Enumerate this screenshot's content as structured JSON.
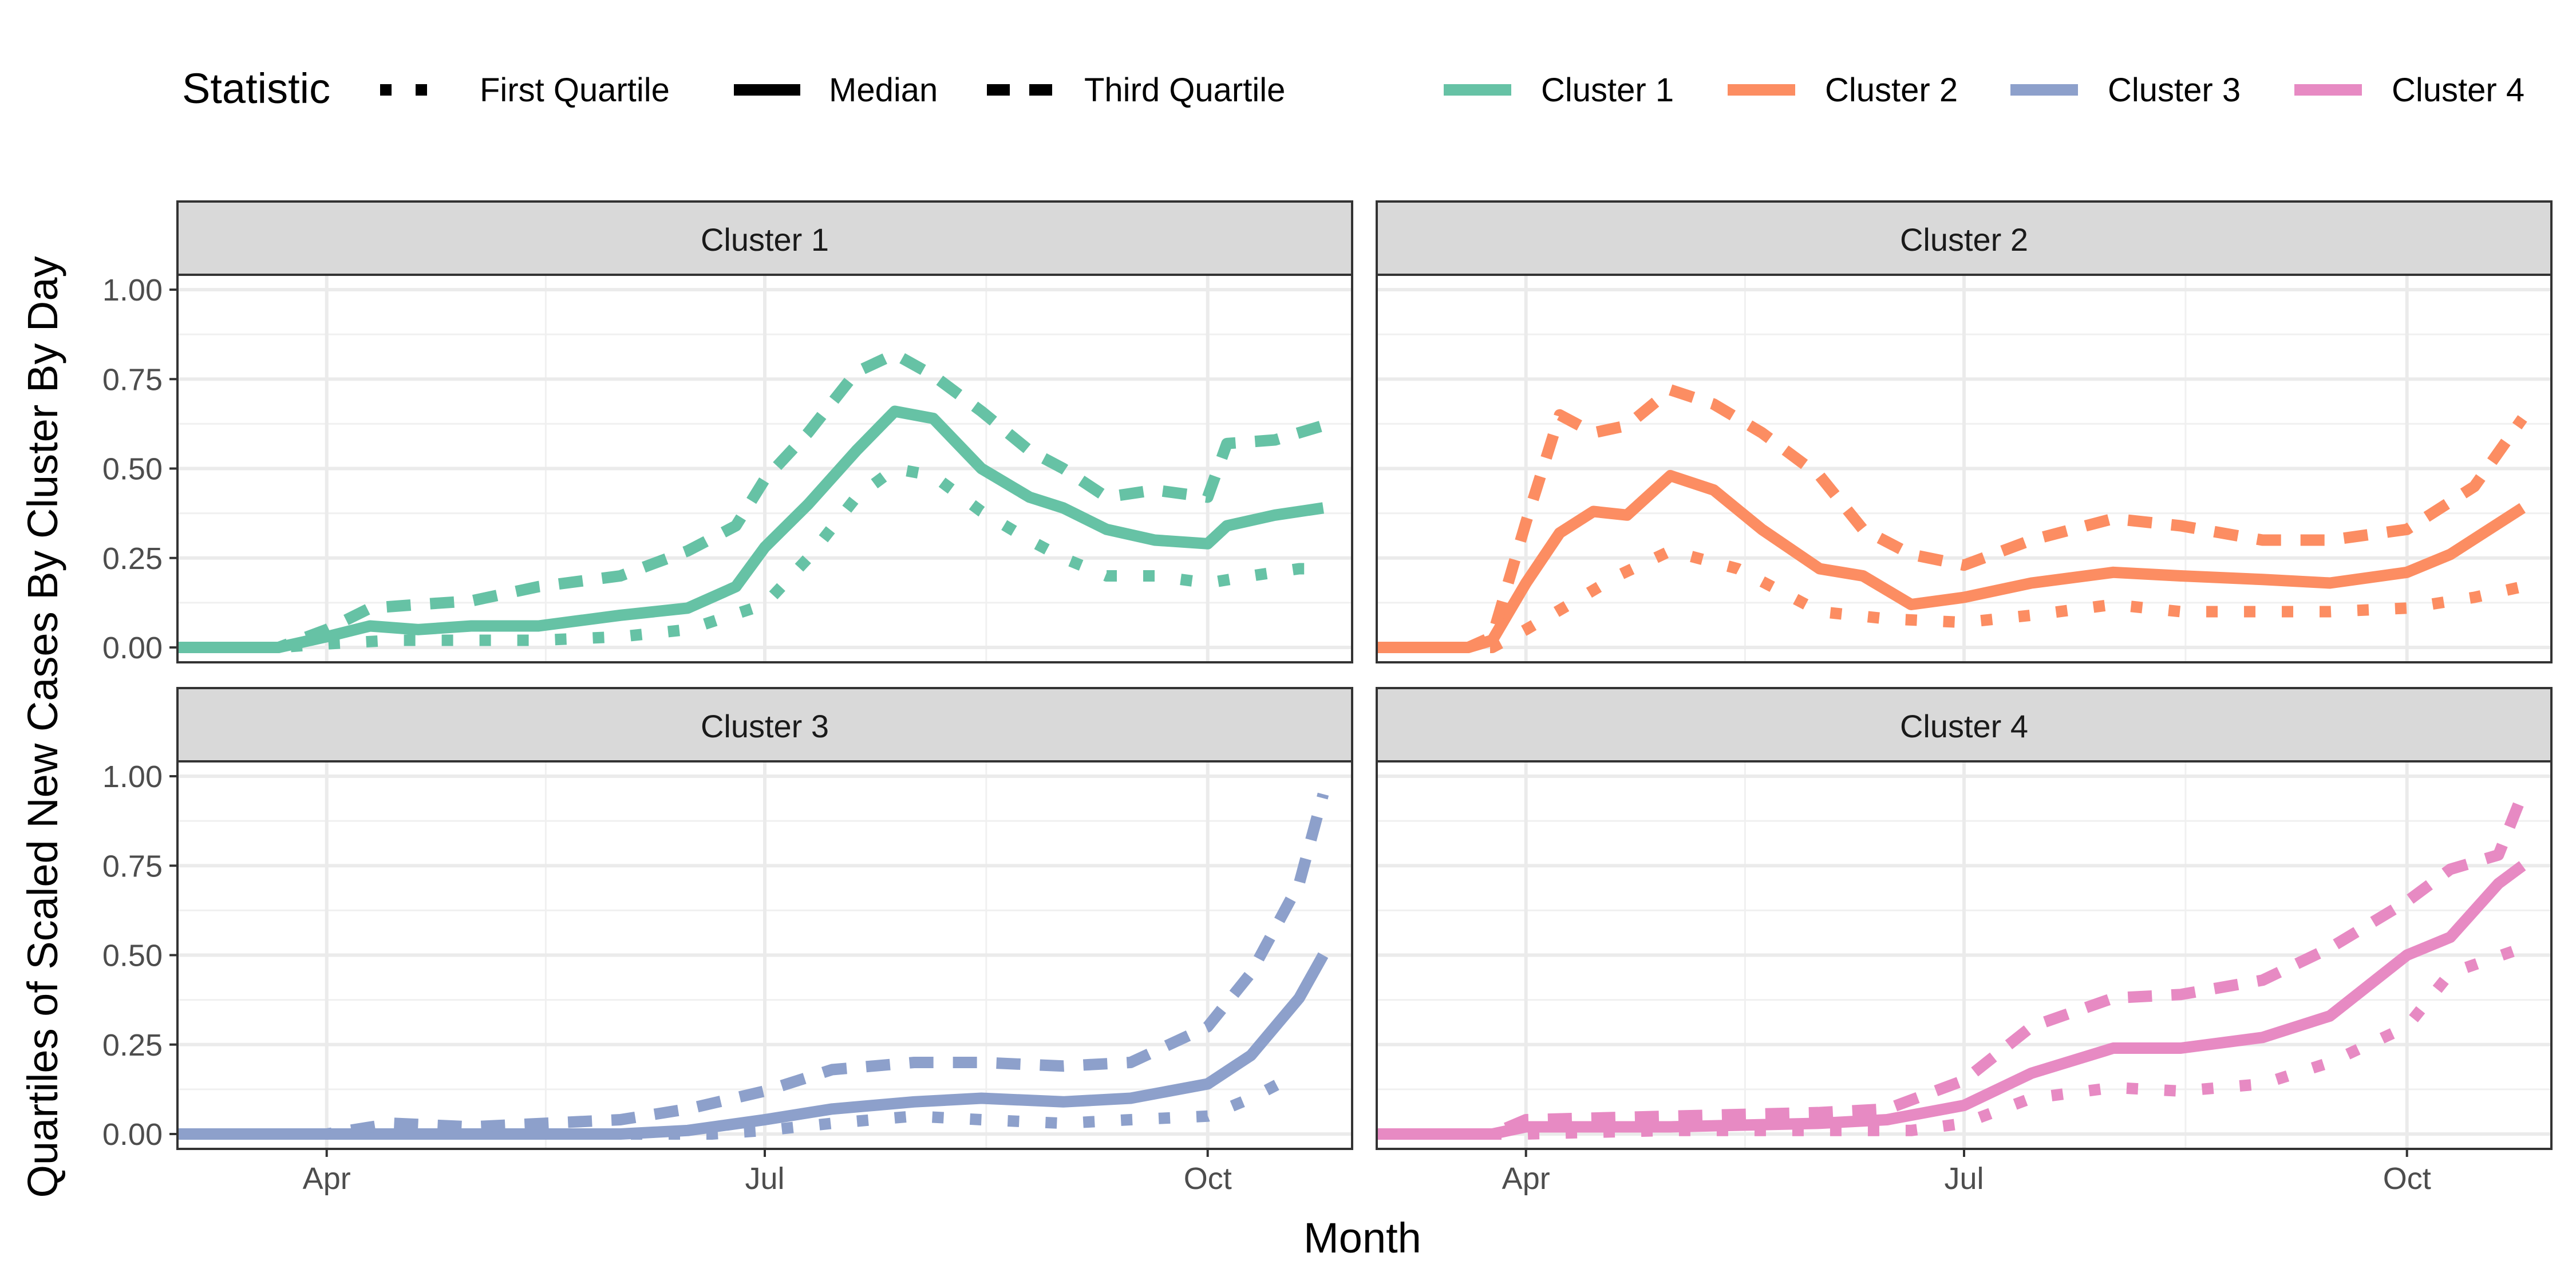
{
  "chart_data": {
    "type": "line",
    "xlabel": "Month",
    "ylabel": "Quartiles of Scaled New Cases By Cluster By Day",
    "x_range": [
      "2020-03-01",
      "2020-10-31"
    ],
    "x_ticks": [
      {
        "label": "Apr",
        "date": "2020-04-01"
      },
      {
        "label": "Jul",
        "date": "2020-07-01"
      },
      {
        "label": "Oct",
        "date": "2020-10-01"
      }
    ],
    "ylim": [
      0,
      1
    ],
    "y_ticks": [
      "0.00",
      "0.25",
      "0.50",
      "0.75",
      "1.00"
    ],
    "grid": true,
    "legend": {
      "position": "top",
      "statistic_title": "Statistic",
      "statistics": [
        "First Quartile",
        "Median",
        "Third Quartile"
      ],
      "clusters": [
        "Cluster 1",
        "Cluster 2",
        "Cluster 3",
        "Cluster 4"
      ]
    },
    "colors": {
      "Cluster 1": "#66c2a5",
      "Cluster 2": "#fc8d62",
      "Cluster 3": "#8da0cb",
      "Cluster 4": "#e78ac3"
    },
    "facets": [
      {
        "name": "Cluster 1",
        "series": [
          {
            "name": "First Quartile",
            "x": [
              "2020-03-01",
              "2020-03-15",
              "2020-03-22",
              "2020-04-01",
              "2020-04-15",
              "2020-05-01",
              "2020-05-15",
              "2020-06-01",
              "2020-06-15",
              "2020-07-01",
              "2020-07-10",
              "2020-07-20",
              "2020-07-28",
              "2020-08-05",
              "2020-08-15",
              "2020-08-25",
              "2020-09-01",
              "2020-09-10",
              "2020-09-20",
              "2020-10-01",
              "2020-10-10",
              "2020-10-20",
              "2020-10-25"
            ],
            "y": [
              0,
              0,
              0,
              0.01,
              0.02,
              0.02,
              0.02,
              0.03,
              0.05,
              0.12,
              0.25,
              0.42,
              0.5,
              0.48,
              0.38,
              0.3,
              0.25,
              0.2,
              0.2,
              0.18,
              0.2,
              0.22,
              0.22
            ]
          },
          {
            "name": "Median",
            "x": [
              "2020-03-01",
              "2020-03-15",
              "2020-03-22",
              "2020-04-01",
              "2020-04-10",
              "2020-04-20",
              "2020-05-01",
              "2020-05-15",
              "2020-06-01",
              "2020-06-15",
              "2020-06-25",
              "2020-07-01",
              "2020-07-10",
              "2020-07-20",
              "2020-07-28",
              "2020-08-05",
              "2020-08-15",
              "2020-08-25",
              "2020-09-01",
              "2020-09-10",
              "2020-09-20",
              "2020-10-01",
              "2020-10-05",
              "2020-10-15",
              "2020-10-25"
            ],
            "y": [
              0,
              0,
              0,
              0.03,
              0.06,
              0.05,
              0.06,
              0.06,
              0.09,
              0.11,
              0.17,
              0.28,
              0.4,
              0.55,
              0.66,
              0.64,
              0.5,
              0.42,
              0.39,
              0.33,
              0.3,
              0.29,
              0.34,
              0.37,
              0.39
            ]
          },
          {
            "name": "Third Quartile",
            "x": [
              "2020-03-01",
              "2020-03-15",
              "2020-03-22",
              "2020-04-01",
              "2020-04-10",
              "2020-04-20",
              "2020-05-01",
              "2020-05-15",
              "2020-06-01",
              "2020-06-15",
              "2020-06-25",
              "2020-07-01",
              "2020-07-10",
              "2020-07-20",
              "2020-07-28",
              "2020-08-05",
              "2020-08-15",
              "2020-08-25",
              "2020-09-01",
              "2020-09-10",
              "2020-09-20",
              "2020-10-01",
              "2020-10-05",
              "2020-10-15",
              "2020-10-25"
            ],
            "y": [
              0,
              0,
              0,
              0.05,
              0.11,
              0.12,
              0.13,
              0.17,
              0.2,
              0.27,
              0.34,
              0.47,
              0.6,
              0.77,
              0.82,
              0.76,
              0.66,
              0.55,
              0.5,
              0.42,
              0.44,
              0.42,
              0.57,
              0.58,
              0.62
            ]
          }
        ]
      },
      {
        "name": "Cluster 2",
        "series": [
          {
            "name": "First Quartile",
            "x": [
              "2020-03-01",
              "2020-03-20",
              "2020-03-25",
              "2020-04-01",
              "2020-04-10",
              "2020-04-20",
              "2020-05-01",
              "2020-05-15",
              "2020-06-01",
              "2020-06-15",
              "2020-07-01",
              "2020-07-15",
              "2020-08-01",
              "2020-08-15",
              "2020-09-01",
              "2020-09-15",
              "2020-10-01",
              "2020-10-15",
              "2020-10-25"
            ],
            "y": [
              0,
              0,
              0,
              0.05,
              0.12,
              0.2,
              0.27,
              0.22,
              0.1,
              0.08,
              0.07,
              0.09,
              0.12,
              0.1,
              0.1,
              0.1,
              0.11,
              0.14,
              0.17
            ]
          },
          {
            "name": "Median",
            "x": [
              "2020-03-01",
              "2020-03-20",
              "2020-03-25",
              "2020-04-01",
              "2020-04-08",
              "2020-04-15",
              "2020-04-22",
              "2020-05-01",
              "2020-05-10",
              "2020-05-20",
              "2020-06-01",
              "2020-06-10",
              "2020-06-20",
              "2020-07-01",
              "2020-07-15",
              "2020-08-01",
              "2020-08-15",
              "2020-09-01",
              "2020-09-15",
              "2020-10-01",
              "2020-10-10",
              "2020-10-25"
            ],
            "y": [
              0,
              0,
              0.02,
              0.18,
              0.32,
              0.38,
              0.37,
              0.48,
              0.44,
              0.33,
              0.22,
              0.2,
              0.12,
              0.14,
              0.18,
              0.21,
              0.2,
              0.19,
              0.18,
              0.21,
              0.26,
              0.39
            ]
          },
          {
            "name": "Third Quartile",
            "x": [
              "2020-03-01",
              "2020-03-20",
              "2020-03-25",
              "2020-04-01",
              "2020-04-08",
              "2020-04-15",
              "2020-04-22",
              "2020-05-01",
              "2020-05-10",
              "2020-05-20",
              "2020-06-01",
              "2020-06-10",
              "2020-06-20",
              "2020-07-01",
              "2020-07-15",
              "2020-08-01",
              "2020-08-15",
              "2020-09-01",
              "2020-09-15",
              "2020-10-01",
              "2020-10-15",
              "2020-10-25"
            ],
            "y": [
              0,
              0,
              0.03,
              0.35,
              0.65,
              0.6,
              0.62,
              0.72,
              0.68,
              0.6,
              0.48,
              0.33,
              0.26,
              0.23,
              0.3,
              0.36,
              0.34,
              0.3,
              0.3,
              0.33,
              0.45,
              0.64
            ]
          }
        ]
      },
      {
        "name": "Cluster 3",
        "series": [
          {
            "name": "First Quartile",
            "x": [
              "2020-03-01",
              "2020-04-01",
              "2020-05-01",
              "2020-06-01",
              "2020-06-20",
              "2020-07-01",
              "2020-07-15",
              "2020-08-01",
              "2020-08-15",
              "2020-09-01",
              "2020-09-15",
              "2020-10-01",
              "2020-10-10",
              "2020-10-20"
            ],
            "y": [
              0,
              0,
              0,
              0,
              0,
              0.01,
              0.03,
              0.05,
              0.04,
              0.03,
              0.04,
              0.05,
              0.1,
              0.17
            ]
          },
          {
            "name": "Median",
            "x": [
              "2020-03-01",
              "2020-04-01",
              "2020-05-01",
              "2020-06-01",
              "2020-06-15",
              "2020-07-01",
              "2020-07-15",
              "2020-08-01",
              "2020-08-15",
              "2020-09-01",
              "2020-09-15",
              "2020-10-01",
              "2020-10-10",
              "2020-10-20",
              "2020-10-25"
            ],
            "y": [
              0,
              0,
              0,
              0,
              0.01,
              0.04,
              0.07,
              0.09,
              0.1,
              0.09,
              0.1,
              0.14,
              0.22,
              0.38,
              0.5
            ]
          },
          {
            "name": "Third Quartile",
            "x": [
              "2020-03-01",
              "2020-04-01",
              "2020-04-15",
              "2020-05-01",
              "2020-06-01",
              "2020-06-15",
              "2020-07-01",
              "2020-07-15",
              "2020-08-01",
              "2020-08-15",
              "2020-09-01",
              "2020-09-15",
              "2020-10-01",
              "2020-10-10",
              "2020-10-20",
              "2020-10-25"
            ],
            "y": [
              0,
              0,
              0.03,
              0.02,
              0.04,
              0.07,
              0.12,
              0.18,
              0.2,
              0.2,
              0.19,
              0.2,
              0.3,
              0.45,
              0.7,
              0.95
            ]
          }
        ]
      },
      {
        "name": "Cluster 4",
        "series": [
          {
            "name": "First Quartile",
            "x": [
              "2020-03-01",
              "2020-04-01",
              "2020-05-01",
              "2020-06-01",
              "2020-06-20",
              "2020-07-01",
              "2020-07-15",
              "2020-08-01",
              "2020-08-15",
              "2020-09-01",
              "2020-09-15",
              "2020-10-01",
              "2020-10-10",
              "2020-10-25"
            ],
            "y": [
              0,
              0,
              0.01,
              0.01,
              0.01,
              0.03,
              0.1,
              0.13,
              0.12,
              0.14,
              0.2,
              0.3,
              0.45,
              0.52
            ]
          },
          {
            "name": "Median",
            "x": [
              "2020-03-01",
              "2020-03-25",
              "2020-04-01",
              "2020-05-01",
              "2020-06-01",
              "2020-06-15",
              "2020-07-01",
              "2020-07-15",
              "2020-08-01",
              "2020-08-15",
              "2020-09-01",
              "2020-09-15",
              "2020-10-01",
              "2020-10-10",
              "2020-10-20",
              "2020-10-25"
            ],
            "y": [
              0,
              0,
              0.02,
              0.02,
              0.03,
              0.04,
              0.08,
              0.17,
              0.24,
              0.24,
              0.27,
              0.33,
              0.5,
              0.55,
              0.7,
              0.75
            ]
          },
          {
            "name": "Third Quartile",
            "x": [
              "2020-03-01",
              "2020-03-25",
              "2020-04-01",
              "2020-05-01",
              "2020-06-01",
              "2020-06-15",
              "2020-07-01",
              "2020-07-15",
              "2020-08-01",
              "2020-08-15",
              "2020-09-01",
              "2020-09-15",
              "2020-10-01",
              "2020-10-10",
              "2020-10-20",
              "2020-10-25"
            ],
            "y": [
              0,
              0,
              0.04,
              0.05,
              0.06,
              0.07,
              0.15,
              0.3,
              0.38,
              0.39,
              0.43,
              0.52,
              0.65,
              0.74,
              0.78,
              0.95
            ]
          }
        ]
      }
    ]
  }
}
